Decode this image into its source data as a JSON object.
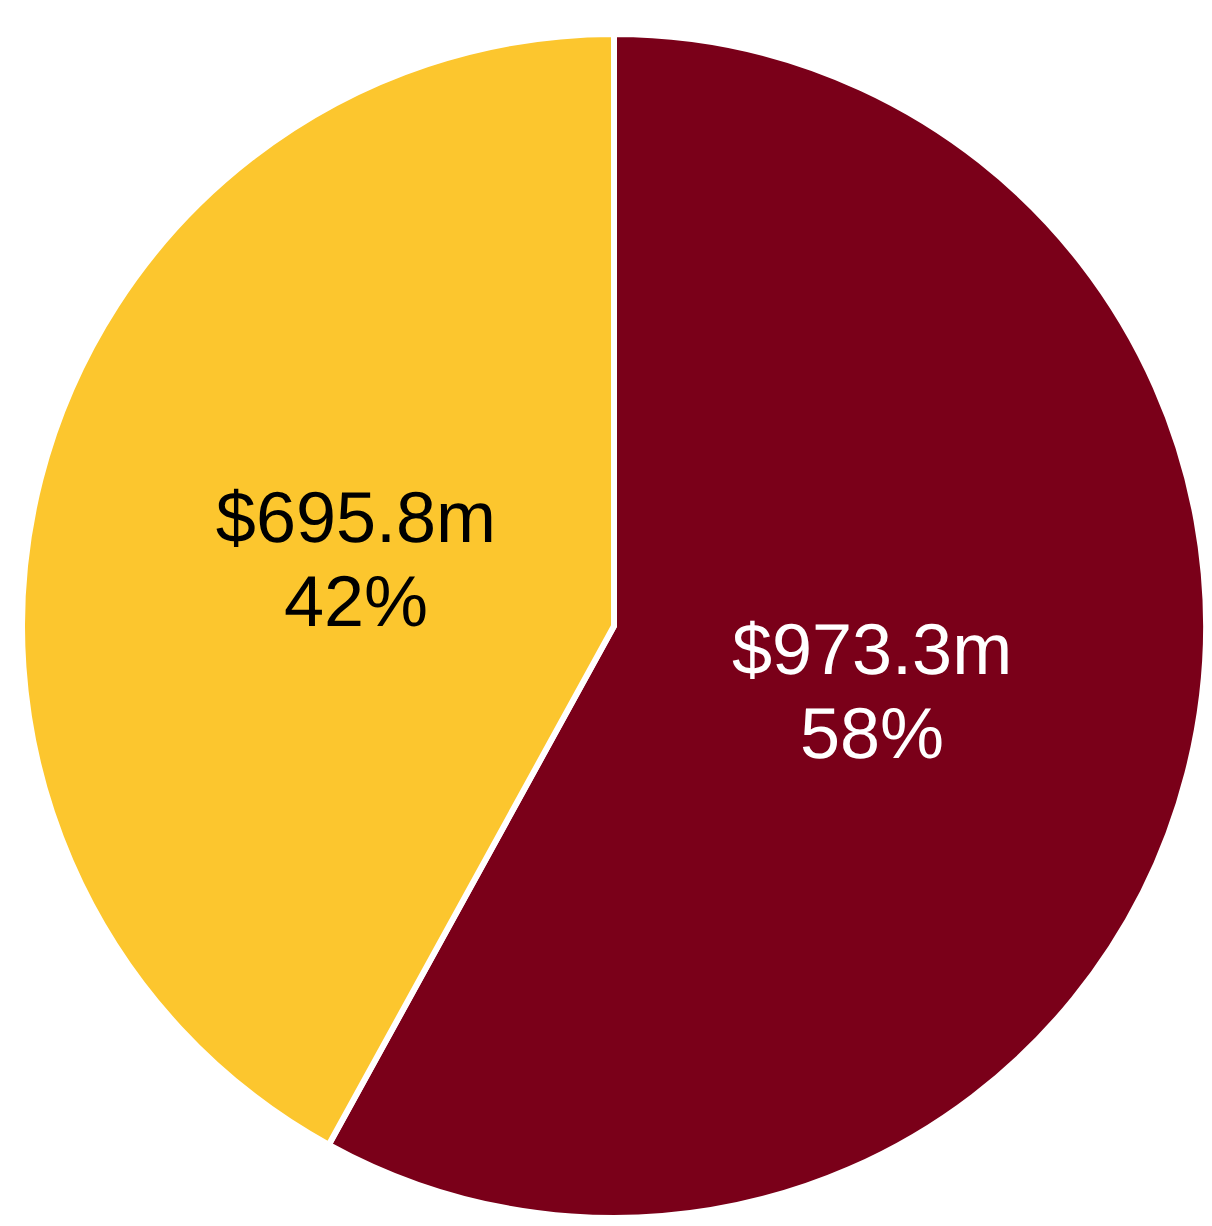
{
  "chart_data": {
    "type": "pie",
    "categories": [
      null,
      null
    ],
    "values": [
      58,
      42
    ],
    "colors": [
      "#7a0019",
      "#fcc62e"
    ],
    "value_labels": [
      "$973.3m\n58%",
      "$695.8m\n42%"
    ]
  }
}
